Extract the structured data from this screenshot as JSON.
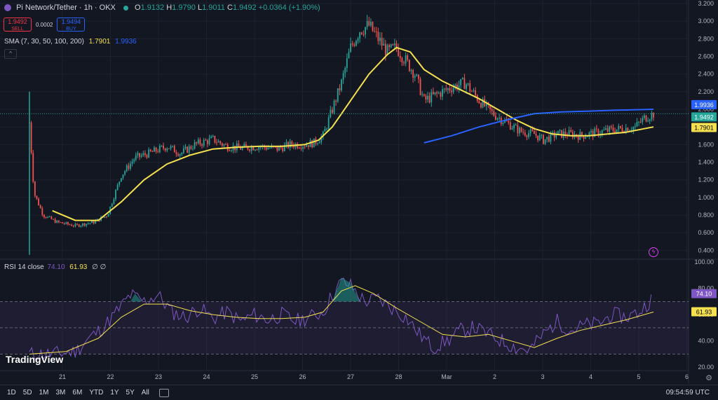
{
  "header": {
    "symbol": "Pi Network/Tether · 1h · OKX",
    "open_label": "O",
    "open": "1.9132",
    "high_label": "H",
    "high": "1.9790",
    "low_label": "L",
    "low": "1.9011",
    "close_label": "C",
    "close": "1.9492",
    "change": "+0.0364 (+1.90%)"
  },
  "trade": {
    "sell_price": "1.9492",
    "sell_label": "SELL",
    "spread": "0.0002",
    "buy_price": "1.9494",
    "buy_label": "BUY"
  },
  "sma": {
    "label": "SMA (7, 30, 50, 100, 200)",
    "v1": "1.7901",
    "v2": "1.9936"
  },
  "rsi": {
    "label": "RSI 14 close",
    "v1": "74.10",
    "v2": "61.93",
    "v3": "∅ ∅"
  },
  "logo": "TradingView",
  "bottom": {
    "ranges": [
      "1D",
      "5D",
      "1M",
      "3M",
      "6M",
      "YTD",
      "1Y",
      "5Y",
      "All"
    ],
    "clock": "09:54:59 UTC"
  },
  "colors": {
    "up": "#26a69a",
    "down": "#ef5350",
    "sma_short": "#f5e050",
    "sma_long": "#2962ff",
    "rsi": "#7e57c2"
  },
  "chart_data": [
    {
      "type": "candlestick",
      "title": "Pi Network/Tether · 1h · OKX",
      "x_ticks": [
        "21",
        "22",
        "23",
        "24",
        "25",
        "26",
        "27",
        "28",
        "Mar",
        "2",
        "3",
        "4",
        "5",
        "6"
      ],
      "y_ticks": [
        "0.400",
        "0.600",
        "0.800",
        "1.000",
        "1.200",
        "1.400",
        "1.600",
        "1.800",
        "2.000",
        "2.200",
        "2.400",
        "2.600",
        "2.800",
        "3.000",
        "3.200"
      ],
      "ylim": [
        0.3,
        3.2
      ],
      "price_labels": {
        "sma_long": "1.9936",
        "last": "1.9492",
        "sma_short": "1.7901"
      },
      "close_path": [
        [
          0,
          1.85
        ],
        [
          0.1,
          1.05
        ],
        [
          0.3,
          0.8
        ],
        [
          0.6,
          0.72
        ],
        [
          1.0,
          0.68
        ],
        [
          1.4,
          0.72
        ],
        [
          1.7,
          0.8
        ],
        [
          2.0,
          1.25
        ],
        [
          2.3,
          1.45
        ],
        [
          2.6,
          1.5
        ],
        [
          3.0,
          1.58
        ],
        [
          3.3,
          1.5
        ],
        [
          3.6,
          1.6
        ],
        [
          4.0,
          1.66
        ],
        [
          4.3,
          1.58
        ],
        [
          4.6,
          1.56
        ],
        [
          5.0,
          1.58
        ],
        [
          5.4,
          1.55
        ],
        [
          5.7,
          1.6
        ],
        [
          6.0,
          1.6
        ],
        [
          6.2,
          1.62
        ],
        [
          6.4,
          1.7
        ],
        [
          6.6,
          2.0
        ],
        [
          6.8,
          2.3
        ],
        [
          7.0,
          2.7
        ],
        [
          7.2,
          2.9
        ],
        [
          7.4,
          2.95
        ],
        [
          7.6,
          2.8
        ],
        [
          7.8,
          2.65
        ],
        [
          8.0,
          2.7
        ],
        [
          8.2,
          2.55
        ],
        [
          8.4,
          2.4
        ],
        [
          8.6,
          2.1
        ],
        [
          8.8,
          2.15
        ],
        [
          9.0,
          2.2
        ],
        [
          9.2,
          2.25
        ],
        [
          9.5,
          2.3
        ],
        [
          9.8,
          2.1
        ],
        [
          10.1,
          1.95
        ],
        [
          10.4,
          1.85
        ],
        [
          10.7,
          1.75
        ],
        [
          11.0,
          1.72
        ],
        [
          11.2,
          1.65
        ],
        [
          11.5,
          1.72
        ],
        [
          11.8,
          1.72
        ],
        [
          12.0,
          1.7
        ],
        [
          12.3,
          1.73
        ],
        [
          12.6,
          1.76
        ],
        [
          12.9,
          1.78
        ],
        [
          13.2,
          1.8
        ],
        [
          13.4,
          1.9
        ],
        [
          13.6,
          1.95
        ]
      ],
      "series": [
        {
          "name": "SMA",
          "values": [
            [
              0.5,
              0.85
            ],
            [
              1.0,
              0.74
            ],
            [
              1.5,
              0.74
            ],
            [
              2.0,
              0.95
            ],
            [
              2.5,
              1.2
            ],
            [
              3.0,
              1.38
            ],
            [
              3.5,
              1.48
            ],
            [
              4.0,
              1.55
            ],
            [
              4.5,
              1.57
            ],
            [
              5.0,
              1.58
            ],
            [
              5.5,
              1.58
            ],
            [
              6.0,
              1.6
            ],
            [
              6.3,
              1.65
            ],
            [
              6.6,
              1.8
            ],
            [
              7.0,
              2.1
            ],
            [
              7.4,
              2.4
            ],
            [
              7.8,
              2.62
            ],
            [
              8.0,
              2.7
            ],
            [
              8.3,
              2.65
            ],
            [
              8.6,
              2.45
            ],
            [
              9.0,
              2.32
            ],
            [
              9.4,
              2.22
            ],
            [
              9.8,
              2.12
            ],
            [
              10.2,
              2.0
            ],
            [
              10.6,
              1.88
            ],
            [
              11.0,
              1.78
            ],
            [
              11.4,
              1.72
            ],
            [
              11.8,
              1.7
            ],
            [
              12.2,
              1.7
            ],
            [
              12.6,
              1.72
            ],
            [
              13.0,
              1.74
            ],
            [
              13.4,
              1.78
            ],
            [
              13.6,
              1.8
            ]
          ]
        },
        {
          "name": "SMA",
          "values": [
            [
              8.6,
              1.62
            ],
            [
              9.2,
              1.7
            ],
            [
              9.8,
              1.8
            ],
            [
              10.4,
              1.88
            ],
            [
              11.0,
              1.95
            ],
            [
              11.6,
              1.97
            ],
            [
              12.2,
              1.98
            ],
            [
              12.8,
              1.99
            ],
            [
              13.6,
              2.0
            ]
          ]
        }
      ]
    },
    {
      "type": "line",
      "title": "RSI 14 close",
      "y_ticks": [
        "20.00",
        "40.00",
        "60.00",
        "80.00",
        "100.00"
      ],
      "ylim": [
        18,
        100
      ],
      "bands": [
        30,
        70
      ],
      "price_labels": {
        "rsi": "74.10",
        "ma": "61.93"
      },
      "series": [
        {
          "name": "RSI",
          "values": [
            [
              0,
              30
            ],
            [
              0.5,
              30
            ],
            [
              1.0,
              32
            ],
            [
              1.3,
              42
            ],
            [
              1.6,
              50
            ],
            [
              1.9,
              62
            ],
            [
              2.2,
              75
            ],
            [
              2.5,
              70
            ],
            [
              2.8,
              75
            ],
            [
              3.1,
              62
            ],
            [
              3.4,
              58
            ],
            [
              3.7,
              65
            ],
            [
              4.0,
              57
            ],
            [
              4.3,
              62
            ],
            [
              4.6,
              55
            ],
            [
              4.9,
              60
            ],
            [
              5.2,
              56
            ],
            [
              5.5,
              60
            ],
            [
              5.8,
              55
            ],
            [
              6.1,
              58
            ],
            [
              6.4,
              62
            ],
            [
              6.6,
              75
            ],
            [
              6.8,
              85
            ],
            [
              7.0,
              82
            ],
            [
              7.3,
              70
            ],
            [
              7.6,
              72
            ],
            [
              7.9,
              65
            ],
            [
              8.2,
              58
            ],
            [
              8.5,
              45
            ],
            [
              8.8,
              35
            ],
            [
              9.1,
              40
            ],
            [
              9.4,
              48
            ],
            [
              9.7,
              50
            ],
            [
              10.0,
              45
            ],
            [
              10.3,
              40
            ],
            [
              10.6,
              35
            ],
            [
              10.9,
              33
            ],
            [
              11.2,
              45
            ],
            [
              11.5,
              55
            ],
            [
              11.8,
              48
            ],
            [
              12.1,
              52
            ],
            [
              12.4,
              53
            ],
            [
              12.7,
              60
            ],
            [
              13.0,
              58
            ],
            [
              13.3,
              62
            ],
            [
              13.6,
              74
            ]
          ]
        },
        {
          "name": "RSI MA",
          "values": [
            [
              0,
              30
            ],
            [
              0.8,
              32
            ],
            [
              1.5,
              42
            ],
            [
              2.0,
              58
            ],
            [
              2.5,
              68
            ],
            [
              3.0,
              68
            ],
            [
              3.5,
              63
            ],
            [
              4.0,
              60
            ],
            [
              4.5,
              58
            ],
            [
              5.0,
              57
            ],
            [
              5.5,
              57
            ],
            [
              6.0,
              58
            ],
            [
              6.4,
              62
            ],
            [
              6.8,
              78
            ],
            [
              7.1,
              82
            ],
            [
              7.5,
              76
            ],
            [
              8.0,
              65
            ],
            [
              8.5,
              55
            ],
            [
              9.0,
              45
            ],
            [
              9.5,
              43
            ],
            [
              10.0,
              45
            ],
            [
              10.5,
              40
            ],
            [
              11.0,
              35
            ],
            [
              11.5,
              42
            ],
            [
              12.0,
              48
            ],
            [
              12.5,
              52
            ],
            [
              13.0,
              56
            ],
            [
              13.6,
              62
            ]
          ]
        }
      ]
    }
  ]
}
